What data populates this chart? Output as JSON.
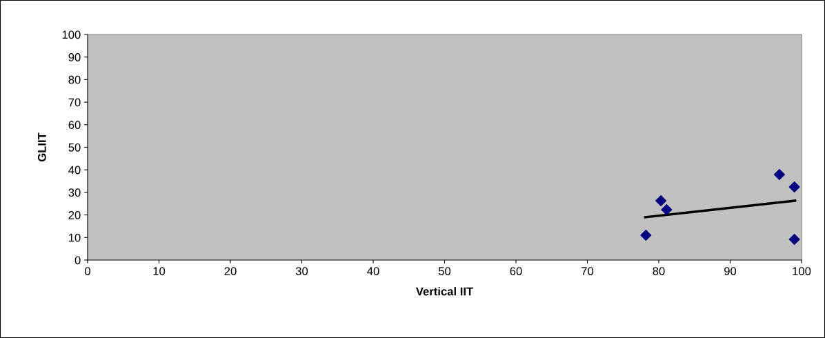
{
  "chart_data": {
    "type": "scatter",
    "xlabel": "Vertical IIT",
    "ylabel": "GLIIT",
    "xlim": [
      0,
      100
    ],
    "ylim": [
      0,
      100
    ],
    "xticks": [
      0,
      10,
      20,
      30,
      40,
      50,
      60,
      70,
      80,
      90,
      100
    ],
    "yticks": [
      0,
      10,
      20,
      30,
      40,
      50,
      60,
      70,
      80,
      90,
      100
    ],
    "grid": false,
    "legend": false,
    "marker": "diamond",
    "series": [
      {
        "color": "#000080",
        "x": [
          78.2,
          80.3,
          81.1,
          96.9,
          99.0,
          99.0
        ],
        "values": [
          11,
          26.3,
          22.3,
          37.9,
          32.4,
          9.2
        ]
      },
      {
        "type": "line",
        "color": "#000000",
        "marker": "none",
        "line_style": "solid",
        "x": [
          78.1,
          99.1
        ],
        "values": [
          19.0,
          26.3
        ]
      }
    ]
  }
}
